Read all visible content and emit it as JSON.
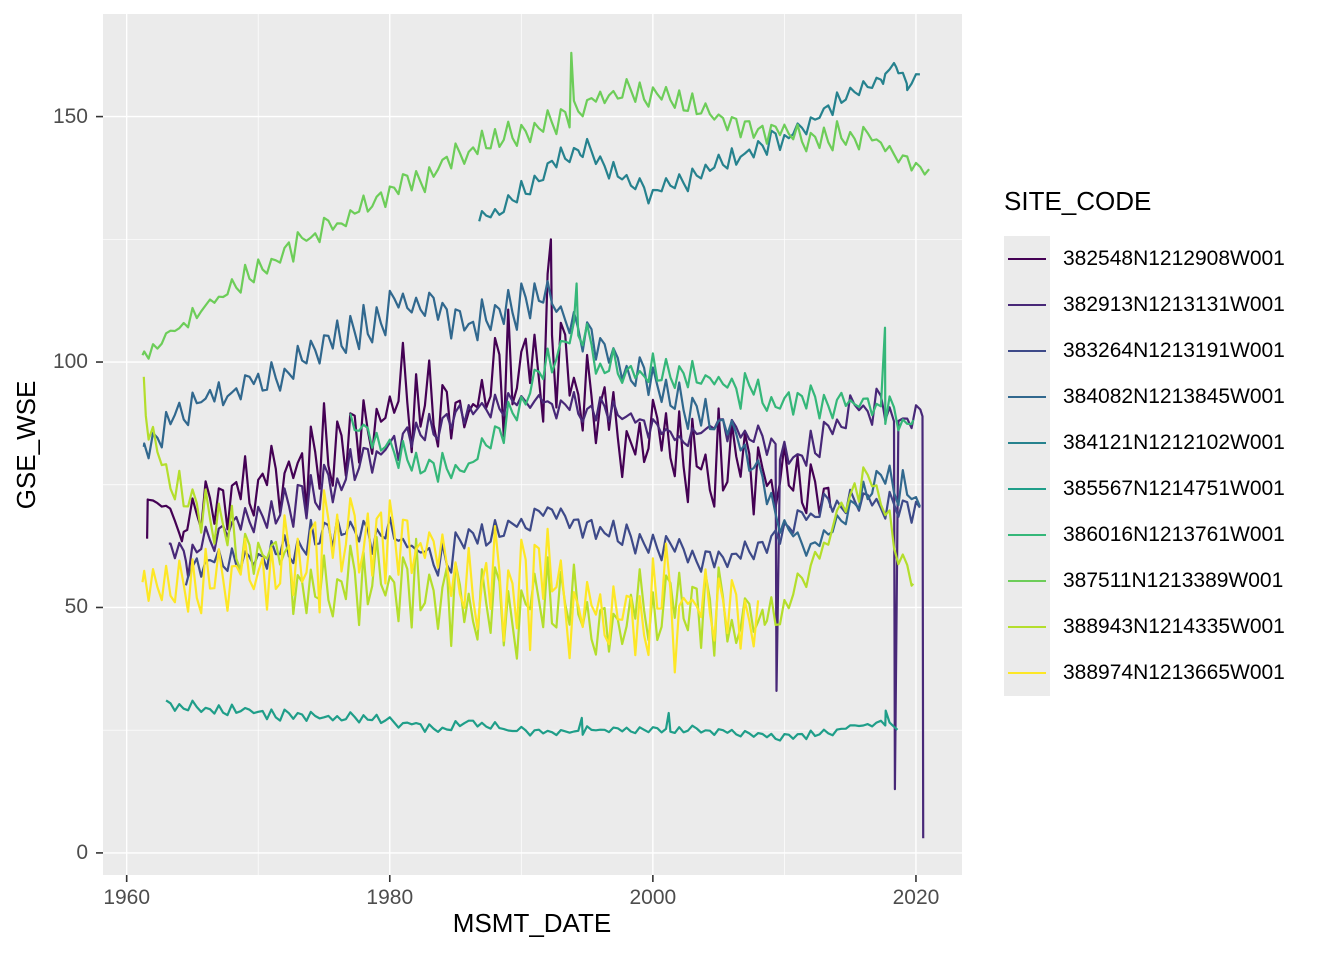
{
  "chart_data": {
    "type": "line",
    "title": "",
    "xlabel": "MSMT_DATE",
    "ylabel": "GSE_WSE",
    "legend_title": "SITE_CODE",
    "legend_position": "right",
    "x_unit": "year",
    "x_ticks": [
      1960,
      1980,
      2000,
      2020
    ],
    "x_minor_ticks": [
      1970,
      1990,
      2010
    ],
    "y_ticks": [
      0,
      50,
      100,
      150
    ],
    "y_minor_ticks": [
      25,
      75,
      125
    ],
    "xlim": [
      1958.2,
      2023.5
    ],
    "ylim": [
      -4.5,
      170.9
    ],
    "grid": true,
    "samples_per_year": 3,
    "colors": {
      "panel_bg": "#EBEBEB",
      "grid": "#FFFFFF",
      "tick_text": "#4D4D4D",
      "tick_mark": "#333333",
      "text": "#000000"
    },
    "series": [
      {
        "name": "382548N1212908W001",
        "color": "#440154",
        "seed": 1,
        "trend": [
          [
            1961.55,
            64,
            0
          ],
          [
            1961.6,
            72,
            0
          ],
          [
            1963.3,
            70.5,
            0.8
          ],
          [
            1964.2,
            63.5,
            1
          ],
          [
            1964.6,
            67,
            5
          ],
          [
            1967,
            72,
            7
          ],
          [
            1970,
            75,
            8
          ],
          [
            1974,
            80,
            10
          ],
          [
            1978,
            88,
            11
          ],
          [
            1981,
            93,
            12
          ],
          [
            1984,
            89,
            12
          ],
          [
            1987,
            91,
            13
          ],
          [
            1990,
            99,
            15
          ],
          [
            1992,
            103,
            16
          ],
          [
            1994,
            96,
            14
          ],
          [
            1997,
            88,
            12
          ],
          [
            2000,
            84,
            12
          ],
          [
            2003,
            81,
            12
          ],
          [
            2006,
            79,
            11
          ],
          [
            2009,
            76,
            10
          ],
          [
            2011,
            73,
            9
          ],
          [
            2013.5,
            70,
            8
          ]
        ],
        "spikes": [
          [
            1992.25,
            125
          ]
        ]
      },
      {
        "name": "382913N1213131W001",
        "color": "#482878",
        "seed": 2,
        "trend": [
          [
            1963.2,
            62,
            2
          ],
          [
            1964.5,
            60,
            4
          ],
          [
            1967,
            65,
            5
          ],
          [
            1970,
            68,
            5
          ],
          [
            1974,
            73,
            5
          ],
          [
            1978,
            79,
            5
          ],
          [
            1982,
            86,
            4
          ],
          [
            1986,
            90,
            3.5
          ],
          [
            1990,
            92,
            3
          ],
          [
            1994,
            91,
            3
          ],
          [
            1998,
            89,
            3
          ],
          [
            2002,
            84,
            3
          ],
          [
            2005,
            87,
            3
          ],
          [
            2008,
            85,
            3
          ],
          [
            2010,
            81,
            3.5
          ],
          [
            2012,
            82,
            4
          ],
          [
            2014,
            87,
            5
          ],
          [
            2016,
            91,
            5
          ],
          [
            2017.5,
            92,
            5
          ],
          [
            2019,
            88,
            4
          ],
          [
            2020.5,
            89,
            3
          ]
        ],
        "spikes": [
          [
            2009.4,
            33
          ],
          [
            2018.4,
            13
          ],
          [
            2020.55,
            3
          ]
        ]
      },
      {
        "name": "383264N1213191W001",
        "color": "#3E4A89",
        "seed": 3,
        "trend": [
          [
            1964.5,
            58,
            3.5
          ],
          [
            1968,
            60,
            4
          ],
          [
            1972,
            62,
            4
          ],
          [
            1976,
            65,
            4.5
          ],
          [
            1980,
            64,
            4.5
          ],
          [
            1984,
            60,
            4
          ],
          [
            1988,
            65,
            4
          ],
          [
            1992,
            70,
            3.5
          ],
          [
            1996,
            66,
            3
          ],
          [
            2000,
            63,
            3
          ],
          [
            2004,
            60,
            3
          ],
          [
            2007,
            61,
            3
          ],
          [
            2010,
            66,
            3
          ],
          [
            2013,
            71,
            3
          ],
          [
            2016,
            72,
            3
          ],
          [
            2018,
            71,
            3
          ],
          [
            2020.3,
            70,
            3
          ]
        ],
        "spikes": []
      },
      {
        "name": "384082N1213845W001",
        "color": "#31688E",
        "seed": 4,
        "trend": [
          [
            1961.3,
            82,
            3
          ],
          [
            1964,
            90,
            4
          ],
          [
            1968,
            94,
            4
          ],
          [
            1972,
            98,
            4
          ],
          [
            1976,
            104,
            4.5
          ],
          [
            1980,
            111,
            5
          ],
          [
            1983,
            112,
            5
          ],
          [
            1986,
            108,
            5
          ],
          [
            1989,
            111,
            5
          ],
          [
            1992,
            112,
            5
          ],
          [
            1994,
            108,
            5
          ],
          [
            1997,
            101,
            4.5
          ],
          [
            2000,
            95,
            4.5
          ],
          [
            2003,
            90,
            4.5
          ],
          [
            2006,
            85,
            4
          ],
          [
            2008,
            77,
            4
          ],
          [
            2010,
            67,
            4
          ],
          [
            2012,
            62,
            3
          ],
          [
            2014,
            67,
            3
          ],
          [
            2016,
            73,
            4
          ],
          [
            2018,
            76,
            4
          ],
          [
            2020.3,
            72,
            4
          ]
        ],
        "spikes": []
      },
      {
        "name": "384121N1212102W001",
        "color": "#26828E",
        "seed": 5,
        "trend": [
          [
            1986.8,
            128,
            2.5
          ],
          [
            1989,
            132,
            2.5
          ],
          [
            1991,
            137,
            2.5
          ],
          [
            1993,
            142,
            2.5
          ],
          [
            1994.5,
            144,
            2.5
          ],
          [
            1996,
            141,
            2.5
          ],
          [
            1998,
            137,
            2.5
          ],
          [
            2000,
            134,
            2.5
          ],
          [
            2002,
            136,
            2.5
          ],
          [
            2004,
            139,
            2.5
          ],
          [
            2006,
            141,
            2.5
          ],
          [
            2008,
            144,
            2.5
          ],
          [
            2010,
            146,
            2.5
          ],
          [
            2012,
            149,
            2.5
          ],
          [
            2014,
            153,
            2.5
          ],
          [
            2016,
            156,
            2.5
          ],
          [
            2017.5,
            159,
            2.5
          ],
          [
            2018.5,
            160,
            2
          ],
          [
            2019.3,
            156,
            2
          ],
          [
            2020.3,
            158,
            1.5
          ]
        ],
        "spikes": []
      },
      {
        "name": "385567N1214751W001",
        "color": "#1F9E89",
        "seed": 6,
        "trend": [
          [
            1963,
            30.5,
            1.4
          ],
          [
            1966,
            29.5,
            1.4
          ],
          [
            1970,
            28.5,
            1.2
          ],
          [
            1974,
            27.5,
            1.2
          ],
          [
            1978,
            27.5,
            1.3
          ],
          [
            1981,
            26.5,
            1.2
          ],
          [
            1984,
            25,
            1
          ],
          [
            1986,
            27,
            1
          ],
          [
            1989,
            25,
            1
          ],
          [
            1992,
            24.5,
            0.9
          ],
          [
            1996,
            25,
            0.9
          ],
          [
            2000,
            25,
            0.9
          ],
          [
            2004,
            25,
            0.9
          ],
          [
            2007,
            24,
            0.9
          ],
          [
            2010,
            23.5,
            0.9
          ],
          [
            2013,
            24.5,
            0.9
          ],
          [
            2015,
            25.5,
            0.9
          ],
          [
            2017,
            26.5,
            1
          ],
          [
            2018.6,
            26,
            1
          ]
        ],
        "spikes": [
          [
            1994.6,
            27.5
          ],
          [
            2001.2,
            28.5
          ],
          [
            2017.7,
            29
          ]
        ]
      },
      {
        "name": "386016N1213761W001",
        "color": "#35B779",
        "seed": 7,
        "trend": [
          [
            1977,
            87,
            3
          ],
          [
            1979,
            84,
            3
          ],
          [
            1982,
            79,
            4
          ],
          [
            1985,
            77,
            4
          ],
          [
            1987,
            81,
            4
          ],
          [
            1989,
            88,
            4
          ],
          [
            1991,
            95,
            4
          ],
          [
            1993,
            102,
            4.5
          ],
          [
            1994.3,
            106,
            4.5
          ],
          [
            1996,
            100,
            4.5
          ],
          [
            1998,
            98,
            4.5
          ],
          [
            2001,
            97,
            4.5
          ],
          [
            2004,
            96,
            4
          ],
          [
            2007,
            94,
            4
          ],
          [
            2010,
            92,
            3.5
          ],
          [
            2013,
            92,
            3.5
          ],
          [
            2016,
            92,
            3
          ],
          [
            2018,
            90,
            3
          ],
          [
            2019.8,
            87,
            3
          ]
        ],
        "spikes": [
          [
            1994.2,
            116
          ],
          [
            2017.65,
            107
          ]
        ]
      },
      {
        "name": "387511N1213389W001",
        "color": "#6DCD59",
        "seed": 8,
        "trend": [
          [
            1961.2,
            101,
            1.5
          ],
          [
            1964,
            107,
            2
          ],
          [
            1967,
            113,
            2.5
          ],
          [
            1970,
            119,
            3
          ],
          [
            1973,
            124,
            3
          ],
          [
            1976,
            128,
            3.5
          ],
          [
            1979,
            133,
            3.5
          ],
          [
            1982,
            137,
            3.5
          ],
          [
            1985,
            141,
            3.5
          ],
          [
            1988,
            145,
            3.5
          ],
          [
            1991,
            148,
            3.5
          ],
          [
            1993.5,
            151,
            3.5
          ],
          [
            1996,
            154,
            3
          ],
          [
            1999,
            155,
            3
          ],
          [
            2002,
            153,
            3
          ],
          [
            2005,
            150,
            3
          ],
          [
            2008,
            147,
            3
          ],
          [
            2011,
            146,
            3
          ],
          [
            2014,
            146,
            3
          ],
          [
            2016,
            146,
            3
          ],
          [
            2018,
            143,
            3
          ],
          [
            2020,
            140,
            2
          ],
          [
            2021,
            139,
            1
          ]
        ],
        "spikes": [
          [
            1993.8,
            163
          ]
        ]
      },
      {
        "name": "388943N1214335W001",
        "color": "#B4DE2C",
        "seed": 9,
        "trend": [
          [
            1961.3,
            97,
            0
          ],
          [
            1961.45,
            89,
            2
          ],
          [
            1962,
            84,
            4
          ],
          [
            1963,
            78,
            5
          ],
          [
            1964,
            74,
            5
          ],
          [
            1966,
            70,
            6
          ],
          [
            1968,
            64,
            7
          ],
          [
            1970,
            61,
            8
          ],
          [
            1973,
            57,
            9
          ],
          [
            1976,
            54,
            10
          ],
          [
            1979,
            56,
            11
          ],
          [
            1982,
            55,
            11
          ],
          [
            1985,
            53,
            11
          ],
          [
            1988,
            52,
            11
          ],
          [
            1991,
            50,
            11
          ],
          [
            1994,
            48,
            11
          ],
          [
            1997,
            46,
            11
          ],
          [
            2000,
            48,
            11
          ],
          [
            2003,
            50,
            11
          ],
          [
            2006,
            48,
            10
          ],
          [
            2008.5,
            47,
            6
          ],
          [
            2010,
            50,
            4
          ],
          [
            2012,
            58,
            4
          ],
          [
            2014,
            68,
            4
          ],
          [
            2016,
            76,
            3.5
          ],
          [
            2017,
            74,
            4
          ],
          [
            2018,
            66,
            4
          ],
          [
            2019.8,
            56,
            3
          ]
        ],
        "spikes": []
      },
      {
        "name": "388974N1213665W001",
        "color": "#FDE725",
        "seed": 10,
        "trend": [
          [
            1961.2,
            55,
            5
          ],
          [
            1964,
            54,
            6
          ],
          [
            1967,
            56,
            7
          ],
          [
            1970,
            58,
            9
          ],
          [
            1973,
            60,
            11
          ],
          [
            1976,
            62,
            13
          ],
          [
            1979,
            63,
            14
          ],
          [
            1982,
            60,
            13
          ],
          [
            1985,
            57,
            13
          ],
          [
            1988,
            55,
            13
          ],
          [
            1991,
            55,
            14
          ],
          [
            1994,
            52,
            13
          ],
          [
            1997,
            50,
            13
          ],
          [
            2000,
            50,
            13
          ],
          [
            2003,
            50,
            13
          ],
          [
            2006,
            48,
            10
          ],
          [
            2008,
            46,
            7
          ]
        ],
        "spikes": []
      }
    ]
  }
}
